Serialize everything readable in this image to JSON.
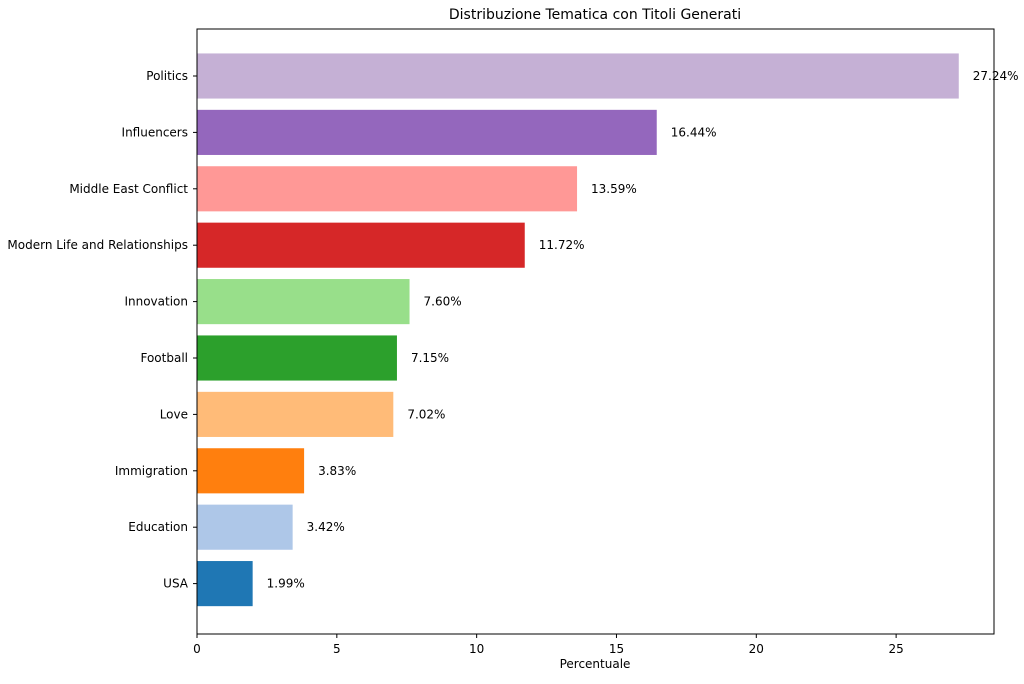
{
  "chart_data": {
    "type": "bar",
    "orientation": "horizontal",
    "title": "Distribuzione Tematica con Titoli Generati",
    "xlabel": "Percentuale",
    "ylabel": "",
    "xlim": [
      0,
      28.5
    ],
    "xticks": [
      0,
      5,
      10,
      15,
      20,
      25
    ],
    "grid": false,
    "categories": [
      "Politics",
      "Influencers",
      "Middle East Conflict",
      "Modern Life and Relationships",
      "Innovation",
      "Football",
      "Love",
      "Immigration",
      "Education",
      "USA"
    ],
    "values": [
      27.24,
      16.44,
      13.59,
      11.72,
      7.6,
      7.15,
      7.02,
      3.83,
      3.42,
      1.99
    ],
    "value_labels": [
      "27.24%",
      "16.44%",
      "13.59%",
      "11.72%",
      "7.60%",
      "7.15%",
      "7.02%",
      "3.83%",
      "3.42%",
      "1.99%"
    ],
    "colors": [
      "#c5b0d5",
      "#9467bd",
      "#ff9896",
      "#d62728",
      "#98df8a",
      "#2ca02c",
      "#ffbb78",
      "#ff7f0e",
      "#aec7e8",
      "#1f77b4"
    ]
  }
}
